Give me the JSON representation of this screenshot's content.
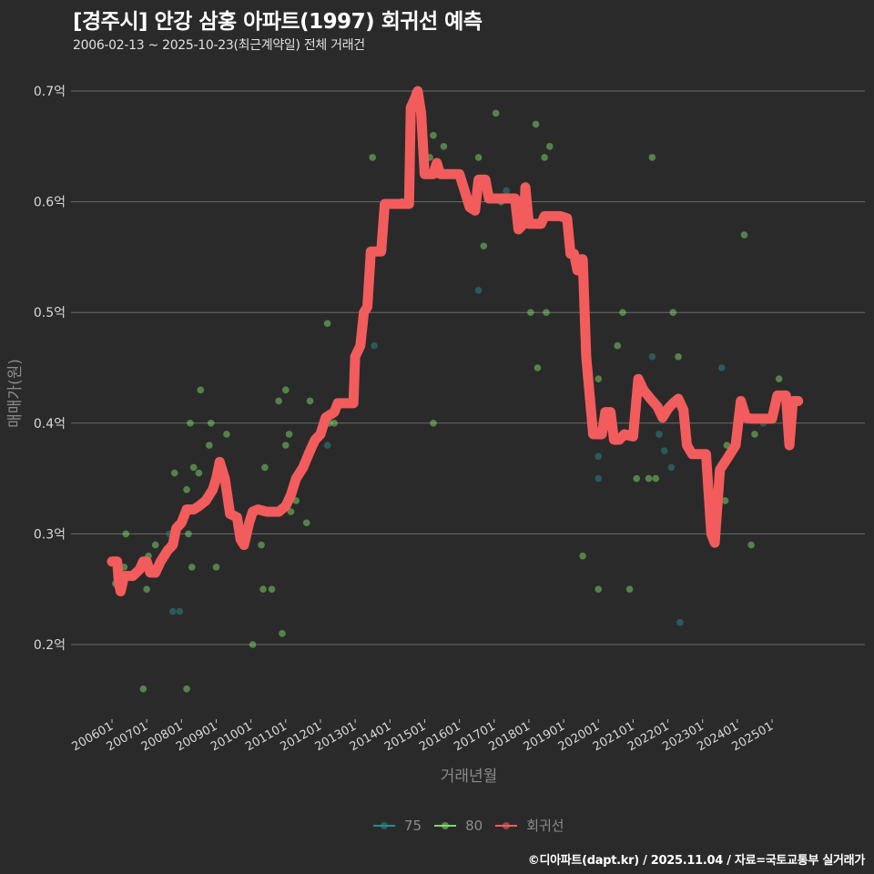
{
  "header": {
    "title": "[경주시] 안강 삼홍 아파트(1997) 회귀선 예측",
    "subtitle": "2006-02-13 ~ 2025-10-23(최근계약일) 전체 거래건"
  },
  "axes": {
    "ylabel": "매매가(원)",
    "xlabel": "거래년월",
    "yticks": [
      "0.7억",
      "0.6억",
      "0.5억",
      "0.4억",
      "0.3억",
      "0.2억"
    ],
    "xticks": [
      "200601",
      "200701",
      "200801",
      "200901",
      "201001",
      "201101",
      "201201",
      "201301",
      "201401",
      "201501",
      "201601",
      "201701",
      "201801",
      "201901",
      "202001",
      "202101",
      "202201",
      "202301",
      "202401",
      "202501"
    ]
  },
  "legend": {
    "items": [
      {
        "label": "75",
        "color": "#2a8a8a"
      },
      {
        "label": "80",
        "color": "#7ddb6a"
      },
      {
        "label": "회귀선",
        "color": "#f25c5c"
      }
    ]
  },
  "footer": {
    "credit": "©디아파트(dapt.kr) / 2025.11.04 / 자료=국토교통부 실거래가"
  },
  "colors": {
    "background": "#2b2a2b",
    "grid": "#6a6a6a",
    "series_75": "#2a8a8a",
    "series_80": "#7ddb6a",
    "regression": "#f25c5c"
  },
  "chart_data": {
    "type": "scatter",
    "title": "[경주시] 안강 삼홍 아파트(1997) 회귀선 예측",
    "subtitle": "2006-02-13 ~ 2025-10-23(최근계약일) 전체 거래건",
    "xlabel": "거래년월",
    "ylabel": "매매가(원)",
    "ylim": [
      0.14,
      0.72
    ],
    "yunit": "억",
    "grid": true,
    "legend_position": "bottom",
    "series": [
      {
        "name": "75",
        "type": "scatter",
        "points": [
          [
            2007.65,
            0.3
          ],
          [
            2007.75,
            0.23
          ],
          [
            2007.95,
            0.23
          ],
          [
            2012.2,
            0.38
          ],
          [
            2013.55,
            0.47
          ],
          [
            2017.35,
            0.61
          ],
          [
            2016.55,
            0.52
          ],
          [
            2019.35,
            0.55
          ],
          [
            2020.0,
            0.37
          ],
          [
            2020.0,
            0.35
          ],
          [
            2021.0,
            0.4
          ],
          [
            2021.55,
            0.46
          ],
          [
            2021.9,
            0.375
          ],
          [
            2022.1,
            0.36
          ],
          [
            2022.35,
            0.22
          ],
          [
            2021.75,
            0.39
          ],
          [
            2023.55,
            0.45
          ],
          [
            2024.75,
            0.4
          ],
          [
            2025.05,
            0.41
          ]
        ]
      },
      {
        "name": "80",
        "type": "scatter",
        "points": [
          [
            2006.1,
            0.255
          ],
          [
            2006.35,
            0.27
          ],
          [
            2006.4,
            0.3
          ],
          [
            2006.9,
            0.16
          ],
          [
            2007.05,
            0.28
          ],
          [
            2007.0,
            0.25
          ],
          [
            2007.25,
            0.29
          ],
          [
            2007.8,
            0.355
          ],
          [
            2008.15,
            0.34
          ],
          [
            2008.2,
            0.3
          ],
          [
            2008.3,
            0.27
          ],
          [
            2008.25,
            0.4
          ],
          [
            2008.35,
            0.36
          ],
          [
            2008.5,
            0.355
          ],
          [
            2008.55,
            0.43
          ],
          [
            2008.85,
            0.4
          ],
          [
            2008.8,
            0.38
          ],
          [
            2009.0,
            0.27
          ],
          [
            2008.15,
            0.16
          ],
          [
            2009.3,
            0.39
          ],
          [
            2010.05,
            0.2
          ],
          [
            2010.4,
            0.36
          ],
          [
            2010.3,
            0.29
          ],
          [
            2010.35,
            0.25
          ],
          [
            2010.6,
            0.25
          ],
          [
            2010.8,
            0.42
          ],
          [
            2010.9,
            0.21
          ],
          [
            2011.0,
            0.43
          ],
          [
            2011.1,
            0.39
          ],
          [
            2011.0,
            0.38
          ],
          [
            2011.15,
            0.32
          ],
          [
            2011.3,
            0.33
          ],
          [
            2011.6,
            0.31
          ],
          [
            2011.7,
            0.42
          ],
          [
            2012.2,
            0.49
          ],
          [
            2012.4,
            0.4
          ],
          [
            2012.25,
            0.4
          ],
          [
            2013.5,
            0.64
          ],
          [
            2014.35,
            0.6
          ],
          [
            2015.0,
            0.65
          ],
          [
            2015.15,
            0.64
          ],
          [
            2015.25,
            0.66
          ],
          [
            2015.25,
            0.4
          ],
          [
            2015.55,
            0.65
          ],
          [
            2016.55,
            0.64
          ],
          [
            2016.7,
            0.56
          ],
          [
            2017.05,
            0.68
          ],
          [
            2017.2,
            0.6
          ],
          [
            2018.05,
            0.5
          ],
          [
            2018.2,
            0.67
          ],
          [
            2018.25,
            0.45
          ],
          [
            2018.45,
            0.64
          ],
          [
            2018.5,
            0.5
          ],
          [
            2018.6,
            0.65
          ],
          [
            2019.55,
            0.28
          ],
          [
            2020.0,
            0.44
          ],
          [
            2020.0,
            0.25
          ],
          [
            2020.55,
            0.47
          ],
          [
            2020.7,
            0.5
          ],
          [
            2020.9,
            0.25
          ],
          [
            2021.1,
            0.35
          ],
          [
            2021.45,
            0.35
          ],
          [
            2021.55,
            0.64
          ],
          [
            2021.65,
            0.35
          ],
          [
            2022.15,
            0.5
          ],
          [
            2022.3,
            0.46
          ],
          [
            2023.65,
            0.33
          ],
          [
            2023.7,
            0.38
          ],
          [
            2024.2,
            0.57
          ],
          [
            2024.4,
            0.29
          ],
          [
            2024.5,
            0.39
          ],
          [
            2025.2,
            0.44
          ]
        ]
      },
      {
        "name": "회귀선",
        "type": "line",
        "points": [
          [
            2006.0,
            0.275
          ],
          [
            2006.15,
            0.275
          ],
          [
            2006.2,
            0.255
          ],
          [
            2006.25,
            0.248
          ],
          [
            2006.35,
            0.262
          ],
          [
            2006.6,
            0.262
          ],
          [
            2006.8,
            0.268
          ],
          [
            2006.9,
            0.275
          ],
          [
            2007.0,
            0.275
          ],
          [
            2007.1,
            0.265
          ],
          [
            2007.25,
            0.265
          ],
          [
            2007.4,
            0.275
          ],
          [
            2007.6,
            0.285
          ],
          [
            2007.75,
            0.29
          ],
          [
            2007.85,
            0.305
          ],
          [
            2008.0,
            0.31
          ],
          [
            2008.15,
            0.322
          ],
          [
            2008.35,
            0.322
          ],
          [
            2008.5,
            0.325
          ],
          [
            2008.7,
            0.33
          ],
          [
            2008.9,
            0.34
          ],
          [
            2009.0,
            0.35
          ],
          [
            2009.1,
            0.365
          ],
          [
            2009.25,
            0.35
          ],
          [
            2009.4,
            0.318
          ],
          [
            2009.6,
            0.315
          ],
          [
            2009.7,
            0.295
          ],
          [
            2009.8,
            0.29
          ],
          [
            2009.95,
            0.31
          ],
          [
            2010.05,
            0.32
          ],
          [
            2010.2,
            0.322
          ],
          [
            2010.45,
            0.32
          ],
          [
            2010.8,
            0.32
          ],
          [
            2011.0,
            0.325
          ],
          [
            2011.15,
            0.335
          ],
          [
            2011.3,
            0.35
          ],
          [
            2011.5,
            0.36
          ],
          [
            2011.7,
            0.375
          ],
          [
            2011.85,
            0.385
          ],
          [
            2012.0,
            0.39
          ],
          [
            2012.15,
            0.405
          ],
          [
            2012.4,
            0.41
          ],
          [
            2012.5,
            0.418
          ],
          [
            2012.95,
            0.418
          ],
          [
            2013.0,
            0.46
          ],
          [
            2013.15,
            0.47
          ],
          [
            2013.25,
            0.5
          ],
          [
            2013.35,
            0.505
          ],
          [
            2013.45,
            0.555
          ],
          [
            2013.75,
            0.555
          ],
          [
            2013.85,
            0.598
          ],
          [
            2014.55,
            0.598
          ],
          [
            2014.6,
            0.685
          ],
          [
            2014.7,
            0.692
          ],
          [
            2014.8,
            0.7
          ],
          [
            2014.9,
            0.68
          ],
          [
            2015.0,
            0.625
          ],
          [
            2015.25,
            0.625
          ],
          [
            2015.35,
            0.635
          ],
          [
            2015.45,
            0.625
          ],
          [
            2016.0,
            0.625
          ],
          [
            2016.15,
            0.61
          ],
          [
            2016.3,
            0.595
          ],
          [
            2016.45,
            0.592
          ],
          [
            2016.55,
            0.62
          ],
          [
            2016.75,
            0.62
          ],
          [
            2016.85,
            0.603
          ],
          [
            2017.6,
            0.603
          ],
          [
            2017.7,
            0.575
          ],
          [
            2017.85,
            0.58
          ],
          [
            2017.9,
            0.613
          ],
          [
            2018.0,
            0.58
          ],
          [
            2018.35,
            0.58
          ],
          [
            2018.45,
            0.587
          ],
          [
            2018.9,
            0.587
          ],
          [
            2019.1,
            0.585
          ],
          [
            2019.2,
            0.553
          ],
          [
            2019.3,
            0.553
          ],
          [
            2019.4,
            0.538
          ],
          [
            2019.5,
            0.548
          ],
          [
            2019.55,
            0.548
          ],
          [
            2019.65,
            0.46
          ],
          [
            2019.75,
            0.425
          ],
          [
            2019.85,
            0.39
          ],
          [
            2020.1,
            0.39
          ],
          [
            2020.2,
            0.41
          ],
          [
            2020.35,
            0.41
          ],
          [
            2020.45,
            0.385
          ],
          [
            2020.6,
            0.385
          ],
          [
            2020.75,
            0.39
          ],
          [
            2021.0,
            0.388
          ],
          [
            2021.15,
            0.44
          ],
          [
            2021.3,
            0.43
          ],
          [
            2021.5,
            0.422
          ],
          [
            2021.7,
            0.415
          ],
          [
            2021.85,
            0.405
          ],
          [
            2022.0,
            0.413
          ],
          [
            2022.15,
            0.418
          ],
          [
            2022.3,
            0.422
          ],
          [
            2022.45,
            0.412
          ],
          [
            2022.55,
            0.38
          ],
          [
            2022.7,
            0.372
          ],
          [
            2023.1,
            0.372
          ],
          [
            2023.25,
            0.3
          ],
          [
            2023.35,
            0.292
          ],
          [
            2023.5,
            0.358
          ],
          [
            2023.75,
            0.37
          ],
          [
            2023.95,
            0.38
          ],
          [
            2024.1,
            0.42
          ],
          [
            2024.25,
            0.405
          ],
          [
            2024.4,
            0.404
          ],
          [
            2025.0,
            0.404
          ],
          [
            2025.15,
            0.425
          ],
          [
            2025.4,
            0.425
          ],
          [
            2025.5,
            0.38
          ],
          [
            2025.6,
            0.42
          ],
          [
            2025.75,
            0.42
          ]
        ]
      }
    ]
  }
}
